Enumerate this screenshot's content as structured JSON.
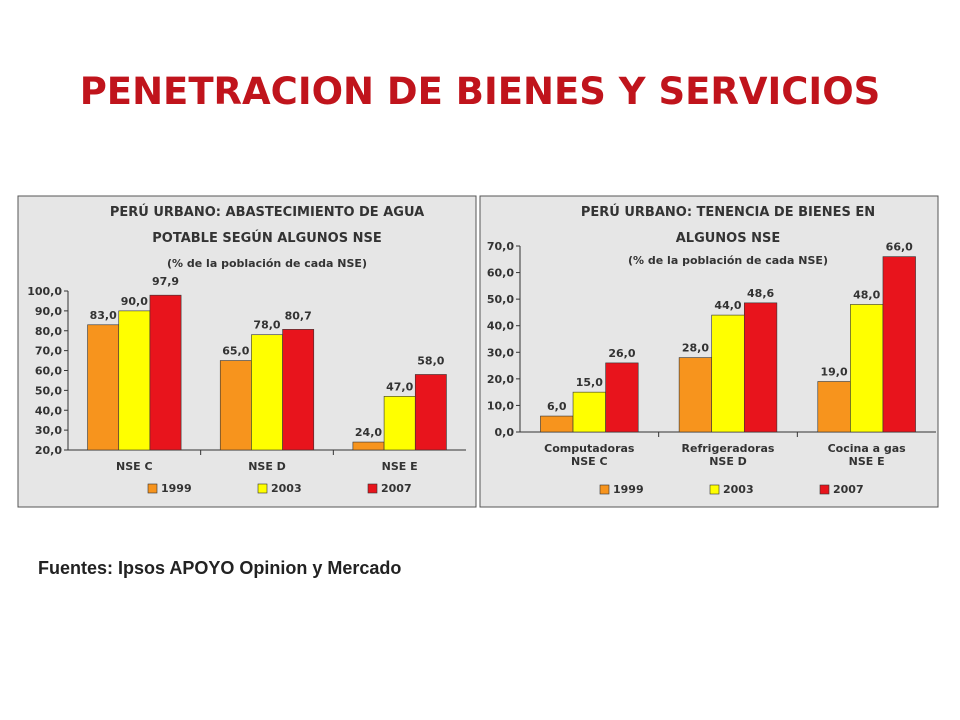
{
  "title": "PENETRACION DE BIENES Y SERVICIOS",
  "source": "Fuentes:  Ipsos APOYO Opinion y Mercado",
  "chart_data": [
    {
      "type": "bar",
      "title": "PERÚ URBANO: ABASTECIMIENTO DE AGUA\nPOTABLE SEGÚN ALGUNOS NSE",
      "subtitle": "(% de la población de cada NSE)",
      "categories": [
        "NSE C",
        "NSE D",
        "NSE E"
      ],
      "series": [
        {
          "name": "1999",
          "color": "#f7941d",
          "values": [
            83.0,
            65.0,
            24.0
          ],
          "value_labels": [
            "83,0",
            "65,0",
            "24,0"
          ]
        },
        {
          "name": "2003",
          "color": "#ffff00",
          "values": [
            90.0,
            78.0,
            47.0
          ],
          "value_labels": [
            "90,0",
            "78,0",
            "47,0"
          ]
        },
        {
          "name": "2007",
          "color": "#e8141c",
          "values": [
            97.9,
            80.7,
            58.0
          ],
          "value_labels": [
            "97,9",
            "80,7",
            "58,0"
          ]
        }
      ],
      "ylim": [
        20,
        100
      ],
      "yticks": [
        {
          "value": 20,
          "label": "20,0"
        },
        {
          "value": 30,
          "label": "30,0"
        },
        {
          "value": 40,
          "label": "40,0"
        },
        {
          "value": 50,
          "label": "50,0"
        },
        {
          "value": 60,
          "label": "60,0"
        },
        {
          "value": 70,
          "label": "70,0"
        },
        {
          "value": 80,
          "label": "80,0"
        },
        {
          "value": 90,
          "label": "90,0"
        },
        {
          "value": 100,
          "label": "100,0"
        }
      ]
    },
    {
      "type": "bar",
      "title": "PERÚ URBANO: TENENCIA DE BIENES EN\nALGUNOS NSE",
      "subtitle": "(% de la población de cada NSE)",
      "categories": [
        "Computadoras\nNSE C",
        "Refrigeradoras\nNSE D",
        "Cocina a gas\nNSE E"
      ],
      "series": [
        {
          "name": "1999",
          "color": "#f7941d",
          "values": [
            6.0,
            28.0,
            19.0
          ],
          "value_labels": [
            "6,0",
            "28,0",
            "19,0"
          ]
        },
        {
          "name": "2003",
          "color": "#ffff00",
          "values": [
            15.0,
            44.0,
            48.0
          ],
          "value_labels": [
            "15,0",
            "44,0",
            "48,0"
          ]
        },
        {
          "name": "2007",
          "color": "#e8141c",
          "values": [
            26.0,
            48.6,
            66.0
          ],
          "value_labels": [
            "26,0",
            "48,6",
            "66,0"
          ]
        }
      ],
      "ylim": [
        0,
        70
      ],
      "yticks": [
        {
          "value": 0,
          "label": "0,0"
        },
        {
          "value": 10,
          "label": "10,0"
        },
        {
          "value": 20,
          "label": "20,0"
        },
        {
          "value": 30,
          "label": "30,0"
        },
        {
          "value": 40,
          "label": "40,0"
        },
        {
          "value": 50,
          "label": "50,0"
        },
        {
          "value": 60,
          "label": "60,0"
        },
        {
          "value": 70,
          "label": "70,0"
        }
      ]
    }
  ]
}
